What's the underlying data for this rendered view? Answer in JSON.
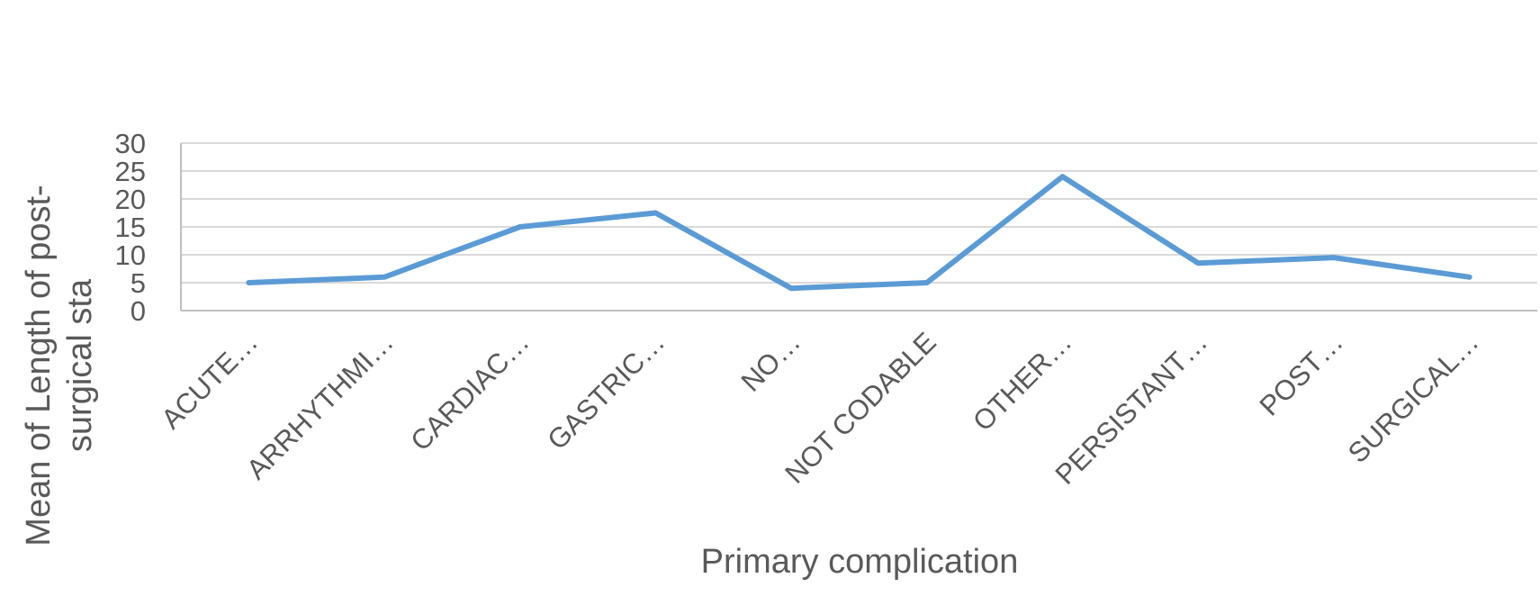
{
  "chart_data": {
    "type": "line",
    "title": "",
    "xlabel": "Primary complication",
    "ylabel_lines": [
      "Mean of Length of post-",
      "surgical sta"
    ],
    "categories": [
      "ACUTE…",
      "ARRHYTHMI…",
      "CARDIAC…",
      "GASTRIC…",
      "NO…",
      "NOT CODABLE",
      "OTHER…",
      "PERSISTANT…",
      "POST…",
      "SURGICAL…"
    ],
    "series": [
      {
        "values": [
          5,
          6,
          15,
          17.5,
          4,
          5,
          24,
          8.5,
          9.5,
          6
        ]
      }
    ],
    "y_ticks": [
      "0",
      "5",
      "10",
      "15",
      "20",
      "25",
      "30"
    ],
    "ylim": [
      0,
      30
    ],
    "grid": true,
    "legend": "none",
    "line_color": "#5b9bd5"
  }
}
